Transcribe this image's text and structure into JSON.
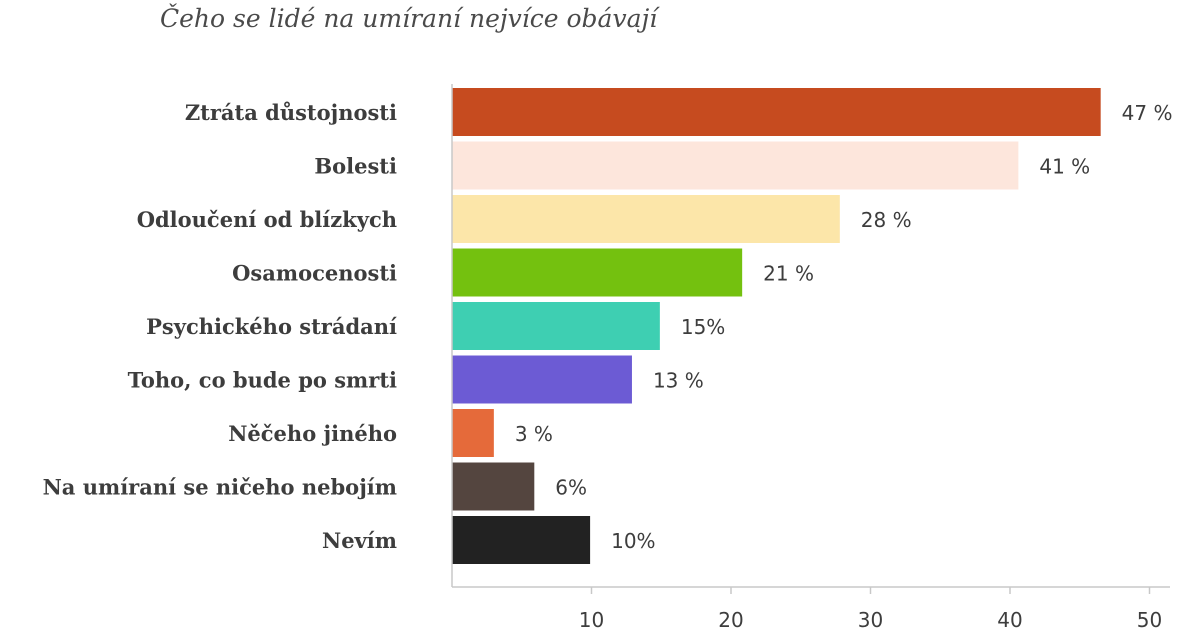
{
  "chart_data": {
    "type": "bar",
    "orientation": "horizontal",
    "title": "Čeho se lidé na umíraní nejvíce obávají",
    "categories": [
      "Ztráta důstojnosti",
      "Bolesti",
      "Odloučení od blízkych",
      "Osamocenosti",
      "Psychického strádaní",
      "Toho, co bude po smrti",
      "Něčeho jiného",
      "Na umíraní se ničeho nebojím",
      "Nevím"
    ],
    "values": [
      46.5,
      40.6,
      27.8,
      20.8,
      14.9,
      12.9,
      3.0,
      5.9,
      9.9
    ],
    "value_labels": [
      "47 %",
      "41 %",
      "28 %",
      "21 %",
      "15%",
      "13 %",
      "3 %",
      "6%",
      "10%"
    ],
    "colors": [
      "#c64b1f",
      "#fde6dc",
      "#fce6a9",
      "#74c10f",
      "#3ecfb2",
      "#6c5bd4",
      "#e56a3a",
      "#54453f",
      "#222222"
    ],
    "xlim": [
      0,
      50
    ],
    "xticks": [
      "10",
      "20",
      "30",
      "40",
      "50"
    ],
    "grid": false
  }
}
